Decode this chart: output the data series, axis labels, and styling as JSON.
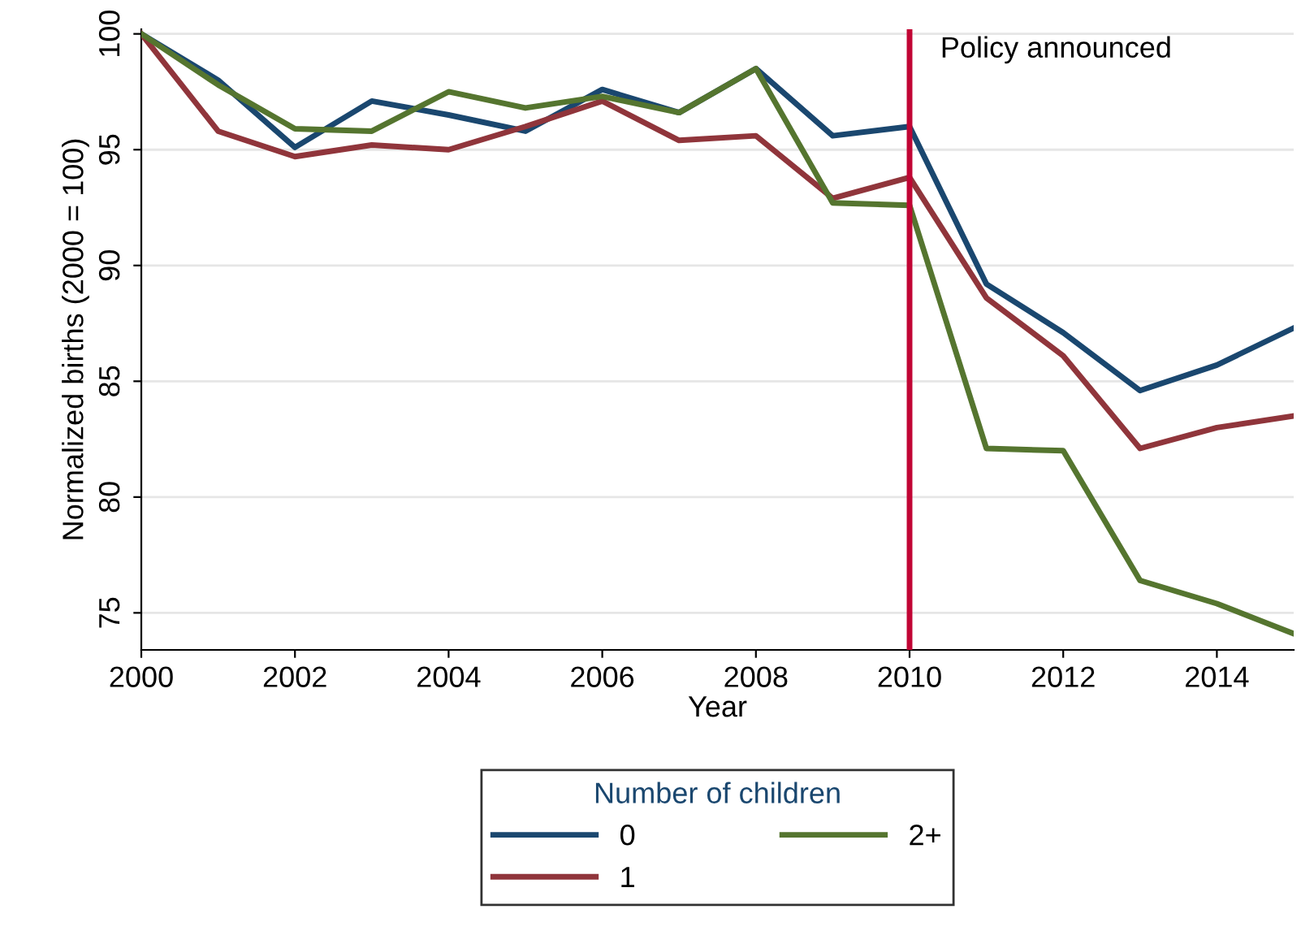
{
  "chart_data": {
    "type": "line",
    "xlabel": "Year",
    "ylabel": "Normalized births (2000 = 100)",
    "legend_title": "Number of children",
    "x": [
      2000,
      2001,
      2002,
      2003,
      2004,
      2005,
      2006,
      2007,
      2008,
      2009,
      2010,
      2011,
      2012,
      2013,
      2014,
      2015
    ],
    "series": [
      {
        "name": "0",
        "color": "#1a476f",
        "values": [
          100,
          98.0,
          95.1,
          97.1,
          96.5,
          95.8,
          97.6,
          96.6,
          98.5,
          95.6,
          96.0,
          89.2,
          87.1,
          84.6,
          85.7,
          87.3
        ]
      },
      {
        "name": "1",
        "color": "#90353b",
        "values": [
          100,
          95.8,
          94.7,
          95.2,
          95.0,
          96.0,
          97.1,
          95.4,
          95.6,
          92.9,
          93.8,
          88.6,
          86.1,
          82.1,
          83.0,
          83.5
        ]
      },
      {
        "name": "2+",
        "color": "#55752f",
        "values": [
          100,
          97.8,
          95.9,
          95.8,
          97.5,
          96.8,
          97.3,
          96.6,
          98.5,
          92.7,
          92.6,
          82.1,
          82.0,
          76.4,
          75.4,
          74.1
        ]
      }
    ],
    "xlim": [
      2000,
      2015
    ],
    "xticks": [
      2000,
      2002,
      2004,
      2006,
      2008,
      2010,
      2012,
      2014
    ],
    "ylim": [
      73.4,
      100.2
    ],
    "yticks": [
      75,
      80,
      85,
      90,
      95,
      100
    ],
    "ref_lines": [
      {
        "axis": "x",
        "value": 2010,
        "label": "Policy announced",
        "color": "#c10534"
      }
    ],
    "grid": "y",
    "legend": "bottom",
    "marker": "none",
    "line_style": "solid"
  }
}
